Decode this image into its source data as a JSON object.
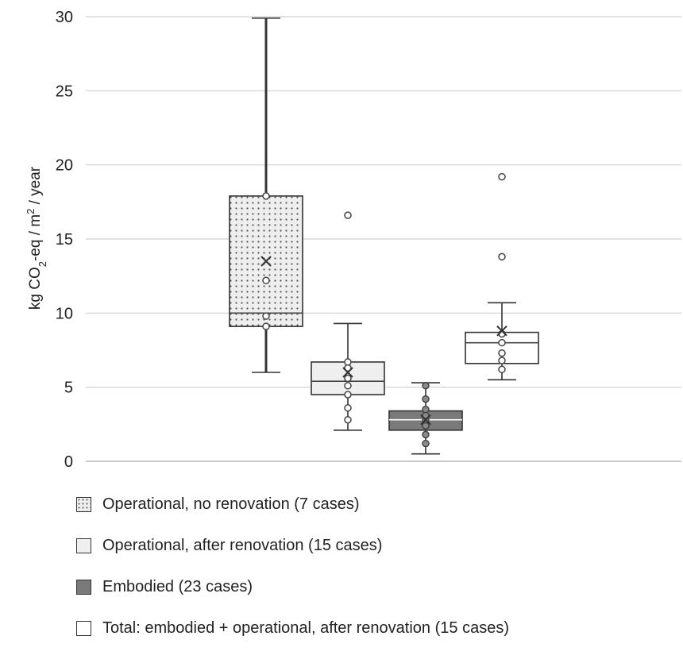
{
  "chart_data": {
    "type": "box",
    "ylabel_parts": {
      "pre": "kg CO",
      "sub": "2",
      "mid": "-eq / m",
      "sup": "2",
      "post": " / year"
    },
    "ylim": [
      0,
      30
    ],
    "yticks": [
      0,
      5,
      10,
      15,
      20,
      25,
      30
    ],
    "grid": true,
    "legend_position": "bottom",
    "series": [
      {
        "name": "Operational, no renovation (7 cases)",
        "fill": "dotted",
        "color": "#e6e6e6",
        "min": 6,
        "q1": 9.1,
        "median": 10,
        "q3": 17.9,
        "max": 29.9,
        "mean": 13.5,
        "points": [
          9.1,
          9.8,
          12.2,
          17.9
        ]
      },
      {
        "name": "Operational, after renovation (15 cases)",
        "fill": "light",
        "color": "#efefef",
        "min": 2.1,
        "q1": 4.5,
        "median": 5.4,
        "q3": 6.7,
        "max": 9.3,
        "mean": 6,
        "points": [
          2.8,
          3.6,
          4.5,
          5.1,
          5.6,
          6.3,
          6.7
        ],
        "outliers": [
          16.6
        ]
      },
      {
        "name": "Embodied (23 cases)",
        "fill": "dark",
        "color": "#7a7a7a",
        "min": 0.5,
        "q1": 2.1,
        "median": 2.8,
        "q3": 3.4,
        "max": 5.3,
        "mean": 2.8,
        "points": [
          1.2,
          1.8,
          2.4,
          2.8,
          3.1,
          3.5,
          4.2,
          5.1
        ]
      },
      {
        "name": "Total: embodied + operational, after renovation (15 cases)",
        "fill": "white",
        "color": "#ffffff",
        "min": 5.5,
        "q1": 6.6,
        "median": 8,
        "q3": 8.7,
        "max": 10.7,
        "mean": 8.8,
        "points": [
          6.2,
          6.8,
          7.3,
          8.0,
          8.6
        ],
        "outliers": [
          13.8,
          19.2
        ]
      }
    ]
  }
}
